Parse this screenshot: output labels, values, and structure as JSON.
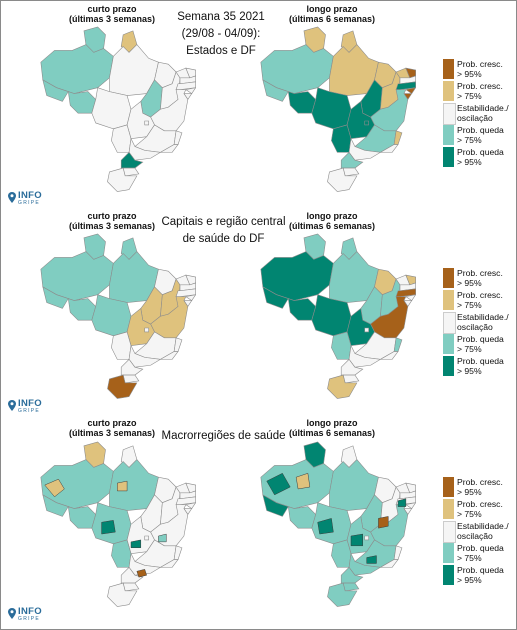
{
  "colors": {
    "prob_cresc_95": "#a6611a",
    "prob_cresc_75": "#dfc27d",
    "estabilidade": "#f5f5f5",
    "prob_queda_75": "#80cdc1",
    "prob_queda_95": "#018571",
    "border": "#8c8c8c"
  },
  "column_titles": {
    "short": {
      "line1": "curto prazo",
      "line2": "(últimas 3 semanas)"
    },
    "long": {
      "line1": "longo prazo",
      "line2": "(últimas 6 semanas)"
    }
  },
  "row1": {
    "title_lines": [
      "Semana 35 2021",
      "(29/08 - 04/09):",
      "Estados e DF"
    ]
  },
  "row2": {
    "title_lines": [
      "Capitais e região central",
      "de saúde do DF"
    ]
  },
  "row3": {
    "title_lines": [
      "Macrorregiões de saúde"
    ]
  },
  "legend": [
    {
      "label": "Prob. cresc.\n> 95%",
      "color_key": "prob_cresc_95"
    },
    {
      "label": "Prob. cresc.\n> 75%",
      "color_key": "prob_cresc_75"
    },
    {
      "label": "Estabilidade./\noscilação",
      "color_key": "estabilidade"
    },
    {
      "label": "Prob. queda\n> 75%",
      "color_key": "prob_queda_75"
    },
    {
      "label": "Prob. queda\n> 95%",
      "color_key": "prob_queda_95"
    }
  ],
  "logo": {
    "name": "INFO",
    "sub": "GRIPE",
    "icon": "map-pin-icon"
  }
}
